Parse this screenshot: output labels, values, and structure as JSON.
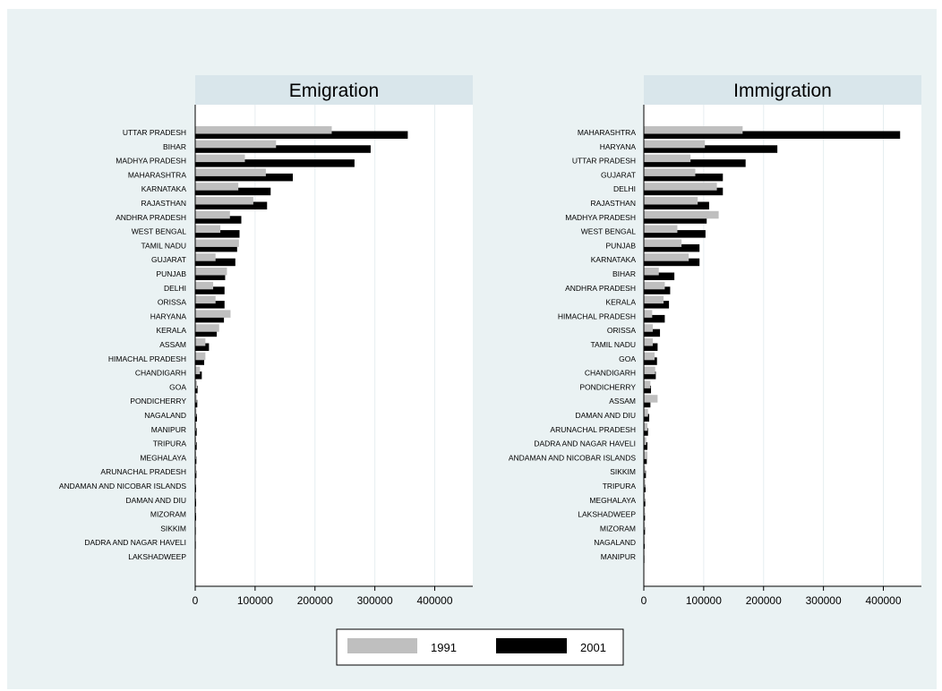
{
  "chart_data": {
    "type": "bar",
    "orientation": "horizontal",
    "grid": true,
    "legend_position": "bottom",
    "xlim": [
      0,
      460000
    ],
    "x_ticks": [
      0,
      100000,
      200000,
      300000,
      400000
    ],
    "x_tick_labels": [
      "0",
      "100000",
      "200000",
      "300000",
      "400000"
    ],
    "series_colors": {
      "1991": "#bfbfbf",
      "2001": "#000000"
    },
    "legend": [
      {
        "label": "1991",
        "color": "#bfbfbf"
      },
      {
        "label": "2001",
        "color": "#000000"
      }
    ],
    "panels": [
      {
        "title": "Emigration",
        "categories": [
          "UTTAR PRADESH",
          "BIHAR",
          "MADHYA PRADESH",
          "MAHARASHTRA",
          "KARNATAKA",
          "RAJASTHAN",
          "ANDHRA PRADESH",
          "WEST BENGAL",
          "TAMIL NADU",
          "GUJARAT",
          "PUNJAB",
          "DELHI",
          "ORISSA",
          "HARYANA",
          "KERALA",
          "ASSAM",
          "HIMACHAL PRADESH",
          "CHANDIGARH",
          "GOA",
          "PONDICHERRY",
          "NAGALAND",
          "MANIPUR",
          "TRIPURA",
          "MEGHALAYA",
          "ARUNACHAL PRADESH",
          "ANDAMAN AND NICOBAR ISLANDS",
          "DAMAN AND DIU",
          "MIZORAM",
          "SIKKIM",
          "DADRA AND NAGAR HAVELI",
          "LAKSHADWEEP"
        ],
        "series": [
          {
            "name": "1991",
            "values": [
              228000,
              135000,
              83000,
              118000,
              72000,
              97000,
              58000,
              42000,
              73000,
              34000,
              53000,
              30000,
              34000,
              59000,
              40000,
              17000,
              17000,
              8000,
              3000,
              2500,
              2000,
              1500,
              1500,
              1500,
              1500,
              1000,
              1000,
              1000,
              800,
              500,
              300
            ]
          },
          {
            "name": "2001",
            "values": [
              355000,
              293000,
              266000,
              163000,
              126000,
              120000,
              77000,
              74000,
              70000,
              67000,
              50000,
              49000,
              49000,
              48000,
              36000,
              23000,
              15000,
              11000,
              4000,
              3500,
              3000,
              2500,
              2500,
              2000,
              2000,
              1500,
              1500,
              1500,
              1000,
              1000,
              500
            ]
          }
        ]
      },
      {
        "title": "Immigration",
        "categories": [
          "MAHARASHTRA",
          "HARYANA",
          "UTTAR PRADESH",
          "GUJARAT",
          "DELHI",
          "RAJASTHAN",
          "MADHYA PRADESH",
          "WEST BENGAL",
          "PUNJAB",
          "KARNATAKA",
          "BIHAR",
          "ANDHRA PRADESH",
          "KERALA",
          "HIMACHAL PRADESH",
          "ORISSA",
          "TAMIL NADU",
          "GOA",
          "CHANDIGARH",
          "PONDICHERRY",
          "ASSAM",
          "DAMAN AND DIU",
          "ARUNACHAL PRADESH",
          "DADRA AND NAGAR HAVELI",
          "ANDAMAN AND NICOBAR ISLANDS",
          "SIKKIM",
          "TRIPURA",
          "MEGHALAYA",
          "LAKSHADWEEP",
          "MIZORAM",
          "NAGALAND",
          "MANIPUR"
        ],
        "series": [
          {
            "name": "1991",
            "values": [
              165000,
              102000,
              78000,
              86000,
              122000,
              90000,
              125000,
              56000,
              63000,
              75000,
              25000,
              35000,
              33000,
              14000,
              15000,
              15000,
              18000,
              19000,
              11000,
              23000,
              7000,
              6000,
              4000,
              6000,
              2500,
              2500,
              2000,
              2000,
              1500,
              1500,
              1000
            ]
          },
          {
            "name": "2001",
            "values": [
              428000,
              223000,
              170000,
              132000,
              132000,
              109000,
              105000,
              103000,
              93000,
              93000,
              51000,
              44000,
              42000,
              35000,
              27000,
              23000,
              22000,
              20000,
              12000,
              11000,
              9000,
              7000,
              6000,
              5000,
              3500,
              3000,
              2500,
              2000,
              2000,
              1500,
              1000
            ]
          }
        ]
      }
    ]
  }
}
